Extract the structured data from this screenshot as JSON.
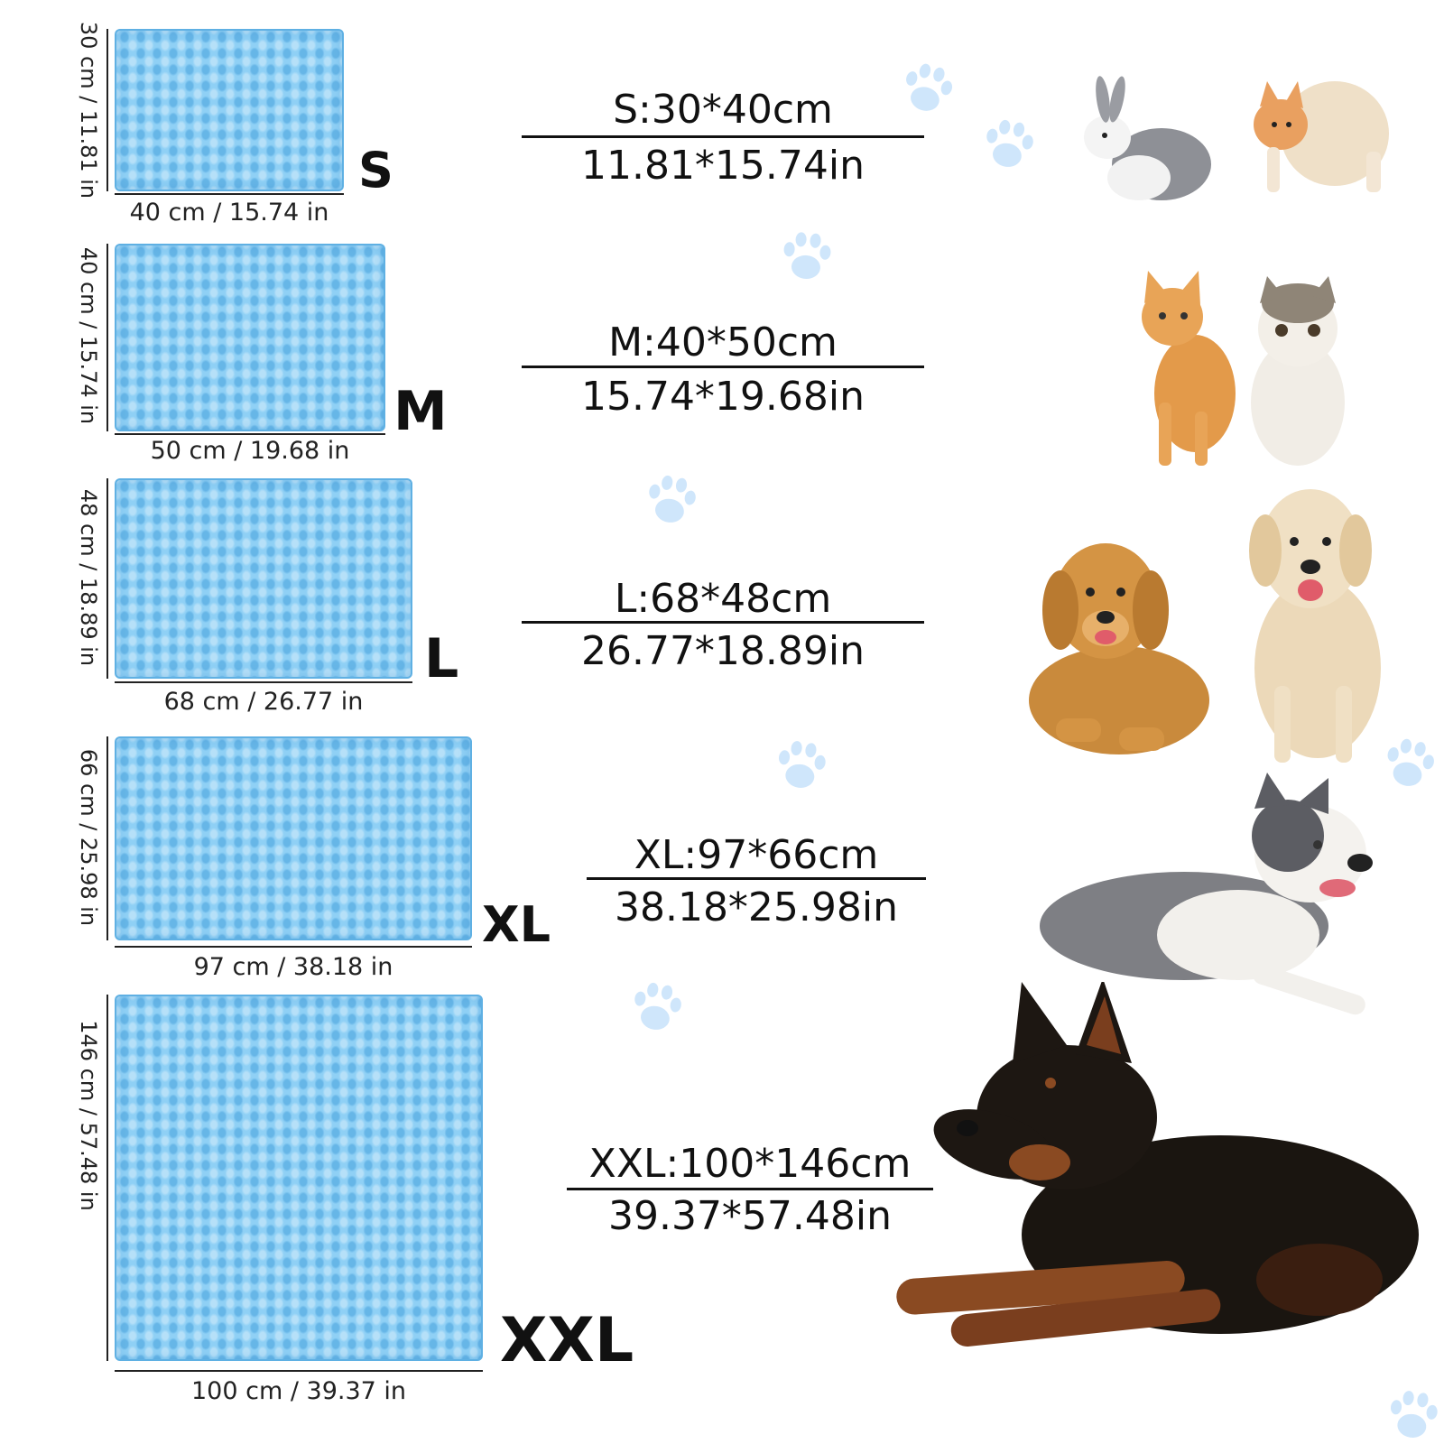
{
  "mats": [
    {
      "size": "S",
      "height_label": "30 cm / 11.81 in",
      "width_label": "40 cm / 15.74 in",
      "spec_cm": "S:30*40cm",
      "spec_in": "11.81*15.74in"
    },
    {
      "size": "M",
      "height_label": "40 cm / 15.74 in",
      "width_label": "50 cm / 19.68 in",
      "spec_cm": "M:40*50cm",
      "spec_in": "15.74*19.68in"
    },
    {
      "size": "L",
      "height_label": "48 cm / 18.89 in",
      "width_label": "68 cm / 26.77 in",
      "spec_cm": "L:68*48cm",
      "spec_in": "26.77*18.89in"
    },
    {
      "size": "XL",
      "height_label": "66 cm / 25.98 in",
      "width_label": "97 cm / 38.18 in",
      "spec_cm": "XL:97*66cm",
      "spec_in": "38.18*25.98in"
    },
    {
      "size": "XXL",
      "height_label": "146 cm / 57.48 in",
      "width_label": "100 cm / 39.37 in",
      "spec_cm": "XXL:100*146cm",
      "spec_in": "39.37*57.48in"
    }
  ],
  "colors": {
    "mat_fill": "#8fd0f5",
    "mat_border": "#5fb0e3",
    "paw": "#cfe6fb",
    "text": "#111111"
  },
  "icons": [
    "paw-print-icon",
    "rabbit-icon",
    "cat-icon",
    "dog-icon"
  ]
}
